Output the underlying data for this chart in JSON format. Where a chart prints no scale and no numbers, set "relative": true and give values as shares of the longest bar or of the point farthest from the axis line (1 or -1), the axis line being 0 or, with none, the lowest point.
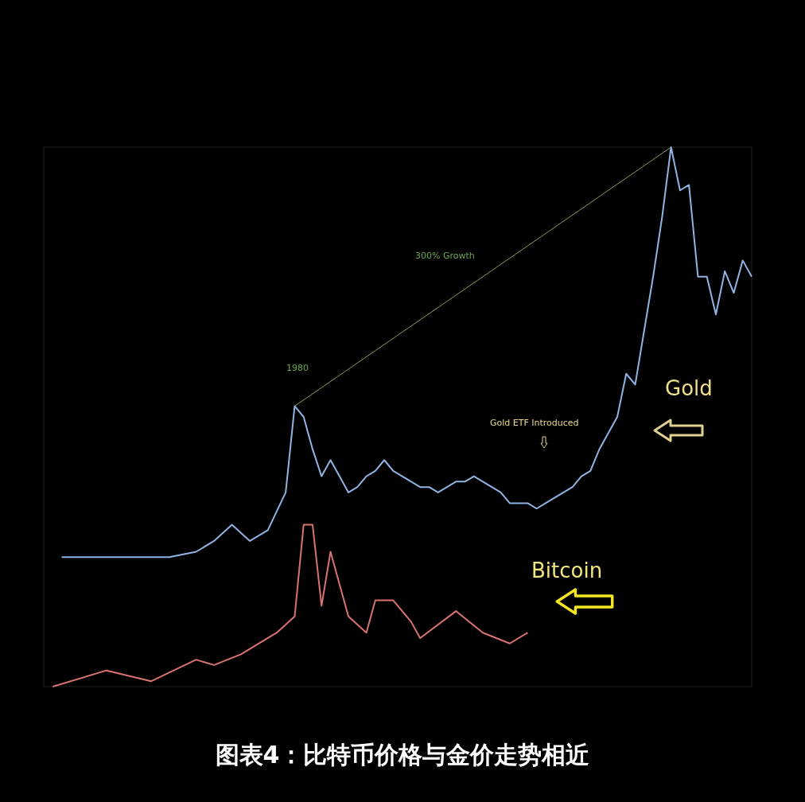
{
  "chart_data": {
    "type": "line",
    "title": "图表4：比特币价格与金价走势相近",
    "relative": true,
    "legend": false,
    "grid": false,
    "marker": "none",
    "categories": [
      null,
      null,
      null,
      null,
      null,
      null,
      null,
      null,
      null,
      null,
      null,
      null,
      null,
      null,
      null,
      null,
      null,
      null,
      null,
      null,
      null,
      null,
      null,
      null,
      null,
      null,
      null,
      null,
      null,
      null,
      null,
      null,
      null,
      null,
      null,
      null,
      null,
      null,
      null,
      null,
      null,
      null,
      null,
      null,
      null,
      null,
      null,
      null,
      null,
      null,
      null,
      null,
      null,
      null,
      null,
      null,
      null,
      null,
      null,
      null,
      null,
      null,
      null,
      null,
      null,
      null,
      null,
      null,
      null,
      null,
      null,
      null,
      null,
      null,
      null,
      null,
      null,
      null,
      null,
      null
    ],
    "series": [
      {
        "name": "Gold",
        "color": "#8fb4e3",
        "values": [
          null,
          null,
          0.24,
          null,
          null,
          null,
          null,
          null,
          null,
          null,
          null,
          null,
          null,
          null,
          0.24,
          null,
          null,
          0.25,
          null,
          0.27,
          null,
          0.3,
          null,
          0.27,
          null,
          0.29,
          null,
          0.36,
          0.52,
          0.5,
          0.44,
          0.39,
          0.42,
          0.39,
          0.36,
          0.37,
          0.39,
          0.4,
          0.42,
          0.4,
          0.39,
          0.38,
          0.37,
          0.37,
          0.36,
          0.37,
          0.38,
          0.38,
          0.39,
          0.38,
          0.37,
          0.36,
          0.34,
          0.34,
          0.34,
          0.33,
          0.34,
          0.35,
          0.36,
          0.37,
          0.39,
          0.4,
          0.44,
          0.47,
          0.5,
          0.58,
          0.56,
          0.66,
          0.76,
          0.87,
          1,
          0.92,
          0.93,
          0.76,
          0.76,
          0.69,
          0.77,
          0.73,
          0.79,
          0.76
        ]
      },
      {
        "name": "Bitcoin",
        "color": "#d9736f",
        "values": [
          null,
          0,
          null,
          null,
          null,
          null,
          null,
          0.03,
          null,
          null,
          null,
          null,
          0.01,
          null,
          null,
          null,
          null,
          0.05,
          null,
          0.04,
          null,
          null,
          0.06,
          null,
          null,
          null,
          0.1,
          null,
          0.13,
          0.3,
          0.3,
          0.15,
          0.25,
          null,
          0.13,
          null,
          0.1,
          0.16,
          null,
          0.16,
          null,
          0.12,
          0.09,
          null,
          null,
          null,
          0.14,
          null,
          null,
          0.1,
          null,
          null,
          0.08,
          null,
          0.1,
          null,
          null,
          null,
          null,
          null,
          null,
          null,
          null,
          null,
          null,
          null,
          null,
          null,
          null,
          null,
          null,
          null,
          null,
          null,
          null,
          null,
          null,
          null,
          null,
          null
        ]
      },
      {
        "color": "#8a9a5a",
        "values": [
          null,
          null,
          null,
          null,
          null,
          null,
          null,
          null,
          null,
          null,
          null,
          null,
          null,
          null,
          null,
          null,
          null,
          null,
          null,
          null,
          null,
          null,
          null,
          null,
          null,
          null,
          null,
          null,
          0.52,
          null,
          null,
          null,
          null,
          null,
          null,
          null,
          null,
          null,
          null,
          null,
          null,
          null,
          null,
          null,
          null,
          null,
          null,
          null,
          null,
          null,
          null,
          null,
          null,
          null,
          null,
          null,
          null,
          null,
          null,
          null,
          null,
          null,
          null,
          null,
          null,
          null,
          null,
          null,
          null,
          null,
          1,
          null,
          null,
          null,
          null,
          null,
          null,
          null,
          null,
          null
        ]
      }
    ],
    "annotations": [
      "1980",
      "300% Growth",
      "Gold ETF Introduced"
    ]
  }
}
